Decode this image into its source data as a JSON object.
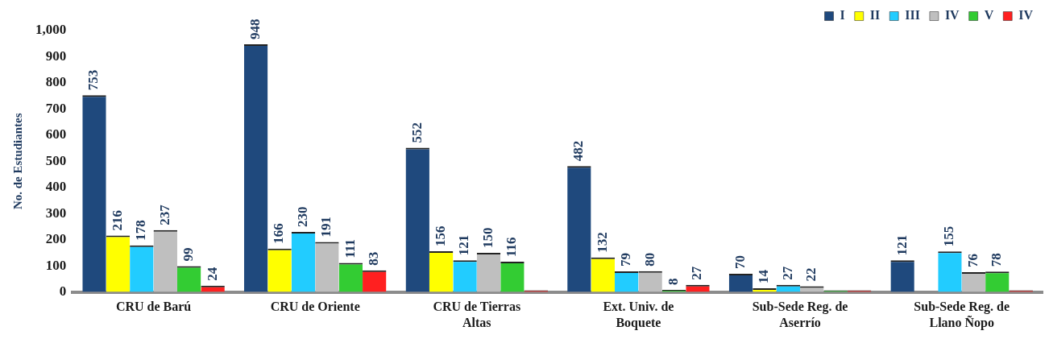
{
  "chart_data": {
    "type": "bar",
    "ylabel": "No. de Estudiantes",
    "categories": [
      "CRU de Barú",
      "CRU de Oriente",
      "CRU de Tierras Altas",
      "Ext. Univ. de Boquete",
      "Sub-Sede Reg. de Aserrío",
      "Sub-Sede Reg. de Llano Ñopo"
    ],
    "series": [
      {
        "name": "I",
        "color": "#1f497d",
        "values": [
          753,
          948,
          552,
          482,
          70,
          121
        ],
        "value_labels": [
          "753",
          "948",
          "552",
          "482",
          "70",
          "121"
        ]
      },
      {
        "name": "II",
        "color": "#ffff00",
        "values": [
          216,
          166,
          156,
          132,
          14,
          null
        ],
        "value_labels": [
          "216",
          "166",
          "156",
          "132",
          "14",
          null
        ]
      },
      {
        "name": "III",
        "color": "#22ccff",
        "values": [
          178,
          230,
          121,
          79,
          27,
          155
        ],
        "value_labels": [
          "178",
          "230",
          "121",
          "79",
          "27",
          "155"
        ]
      },
      {
        "name": "IV",
        "color": "#bfbfbf",
        "values": [
          237,
          191,
          150,
          80,
          22,
          76
        ],
        "value_labels": [
          "237",
          "191",
          "150",
          "80",
          "22",
          "76"
        ]
      },
      {
        "name": "V",
        "color": "#33cc33",
        "values": [
          99,
          111,
          116,
          8,
          0,
          78
        ],
        "value_labels": [
          "99",
          "111",
          "116",
          "8",
          null,
          "78"
        ]
      },
      {
        "name": "IV",
        "color": "#ff2020",
        "values": [
          24,
          83,
          0,
          27,
          0,
          0
        ],
        "value_labels": [
          "24",
          "83",
          null,
          "27",
          null,
          null
        ]
      }
    ],
    "ylim": [
      0,
      1000
    ],
    "yticks": [
      {
        "value": 0,
        "label": "0"
      },
      {
        "value": 100,
        "label": "100"
      },
      {
        "value": 200,
        "label": "200"
      },
      {
        "value": 300,
        "label": "300"
      },
      {
        "value": 400,
        "label": "400"
      },
      {
        "value": 500,
        "label": "500"
      },
      {
        "value": 600,
        "label": "600"
      },
      {
        "value": 700,
        "label": "700"
      },
      {
        "value": 800,
        "label": "800"
      },
      {
        "value": 900,
        "label": "900"
      },
      {
        "value": 1000,
        "label": "1,000"
      }
    ],
    "grid": false,
    "legend": "top"
  }
}
